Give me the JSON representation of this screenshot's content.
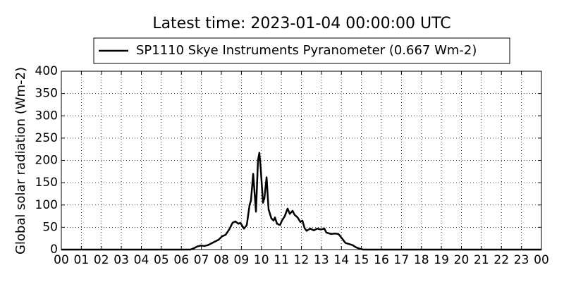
{
  "chart_data": {
    "type": "line",
    "title": "Latest time: 2023-01-04 00:00:00 UTC",
    "y_label": "Global solar radiation (Wm-2)",
    "legend": "upper center",
    "grid": true,
    "xlim": [
      0,
      24
    ],
    "ylim": [
      0,
      400
    ],
    "yticks": [
      0,
      50,
      100,
      150,
      200,
      250,
      300,
      350,
      400
    ],
    "xticks": [
      {
        "value": 0,
        "label": "00"
      },
      {
        "value": 1,
        "label": "01"
      },
      {
        "value": 2,
        "label": "02"
      },
      {
        "value": 3,
        "label": "03"
      },
      {
        "value": 4,
        "label": "04"
      },
      {
        "value": 5,
        "label": "05"
      },
      {
        "value": 6,
        "label": "06"
      },
      {
        "value": 7,
        "label": "07"
      },
      {
        "value": 8,
        "label": "08"
      },
      {
        "value": 9,
        "label": "09"
      },
      {
        "value": 10,
        "label": "10"
      },
      {
        "value": 11,
        "label": "11"
      },
      {
        "value": 12,
        "label": "12"
      },
      {
        "value": 13,
        "label": "13"
      },
      {
        "value": 14,
        "label": "14"
      },
      {
        "value": 15,
        "label": "15"
      },
      {
        "value": 16,
        "label": "16"
      },
      {
        "value": 17,
        "label": "17"
      },
      {
        "value": 18,
        "label": "18"
      },
      {
        "value": 19,
        "label": "19"
      },
      {
        "value": 20,
        "label": "20"
      },
      {
        "value": 21,
        "label": "21"
      },
      {
        "value": 22,
        "label": "22"
      },
      {
        "value": 23,
        "label": "23"
      },
      {
        "value": 24,
        "label": "00"
      }
    ],
    "x": [
      0,
      6.3,
      6.45,
      6.63,
      6.8,
      6.98,
      7.15,
      7.33,
      7.51,
      7.68,
      7.86,
      8.04,
      8.21,
      8.39,
      8.56,
      8.7,
      8.85,
      8.95,
      9.13,
      9.27,
      9.41,
      9.48,
      9.59,
      9.73,
      9.83,
      9.9,
      9.97,
      10.08,
      10.15,
      10.26,
      10.36,
      10.5,
      10.61,
      10.68,
      10.78,
      10.93,
      11.03,
      11.17,
      11.31,
      11.42,
      11.56,
      11.66,
      11.81,
      11.95,
      12.05,
      12.16,
      12.26,
      12.44,
      12.62,
      12.79,
      12.97,
      13.15,
      13.25,
      13.5,
      13.67,
      13.85,
      14.03,
      14.2,
      14.56,
      14.73,
      14.91,
      15.08,
      24
    ],
    "series": [
      {
        "name": "SP1110 Skye Instruments Pyranometer (0.667 Wm-2)",
        "color": "#000000",
        "values": [
          0,
          0,
          0,
          3,
          7,
          9,
          8,
          10,
          14,
          18,
          22,
          30,
          33,
          45,
          60,
          63,
          58,
          60,
          47,
          55,
          100,
          110,
          170,
          85,
          200,
          217,
          180,
          105,
          115,
          162,
          90,
          70,
          65,
          72,
          58,
          55,
          65,
          75,
          92,
          80,
          87,
          78,
          72,
          62,
          65,
          48,
          42,
          47,
          43,
          47,
          45,
          47,
          38,
          35,
          36,
          35,
          25,
          15,
          10,
          5,
          2,
          0,
          0
        ]
      }
    ]
  }
}
